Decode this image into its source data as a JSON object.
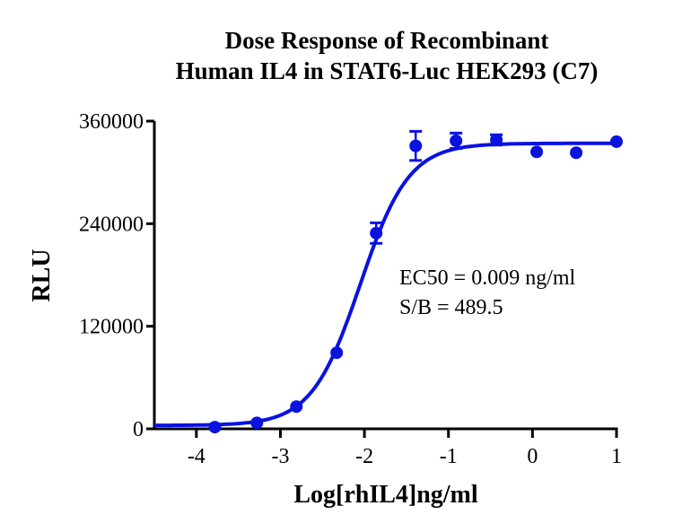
{
  "title_line1": "Dose Response of Recombinant",
  "title_line2": "Human IL4 in STAT6-Luc HEK293 (C7)",
  "annotation_line1": "EC50 = 0.009 ng/ml",
  "annotation_line2": "S/B = 489.5",
  "colors": {
    "series": "#0a12e0",
    "axis": "#000000"
  },
  "chart_data": {
    "type": "scatter",
    "title": "Dose Response of Recombinant Human IL4 in STAT6-Luc HEK293 (C7)",
    "xlabel": "Log[rhIL4]ng/ml",
    "ylabel": "RLU",
    "xlim": [
      -4.5,
      1
    ],
    "ylim": [
      0,
      360000
    ],
    "xticks": [
      -4,
      -3,
      -2,
      -1,
      0,
      1
    ],
    "xtick_labels": [
      "-4",
      "-3",
      "-2",
      "-1",
      "0",
      "1"
    ],
    "yticks": [
      0,
      120000,
      240000,
      360000
    ],
    "ytick_labels": [
      "0",
      "120000",
      "240000",
      "360000"
    ],
    "grid": false,
    "legend": null,
    "annotations": [
      "EC50 = 0.009 ng/ml",
      "S/B = 489.5"
    ],
    "series": [
      {
        "name": "rhIL4",
        "x": [
          -3.78,
          -3.28,
          -2.81,
          -2.33,
          -1.86,
          -1.39,
          -0.91,
          -0.43,
          0.05,
          0.52,
          1.0
        ],
        "y": [
          2000,
          7000,
          26000,
          89000,
          229000,
          331000,
          337000,
          338000,
          324000,
          323000,
          336000
        ],
        "error": [
          0,
          0,
          0,
          0,
          12000,
          17000,
          9000,
          6000,
          0,
          0,
          0
        ],
        "fit": {
          "model": "4PL",
          "bottom": 4000,
          "top": 334000,
          "logEC50": -2.05,
          "hill": 1.5
        }
      }
    ]
  }
}
